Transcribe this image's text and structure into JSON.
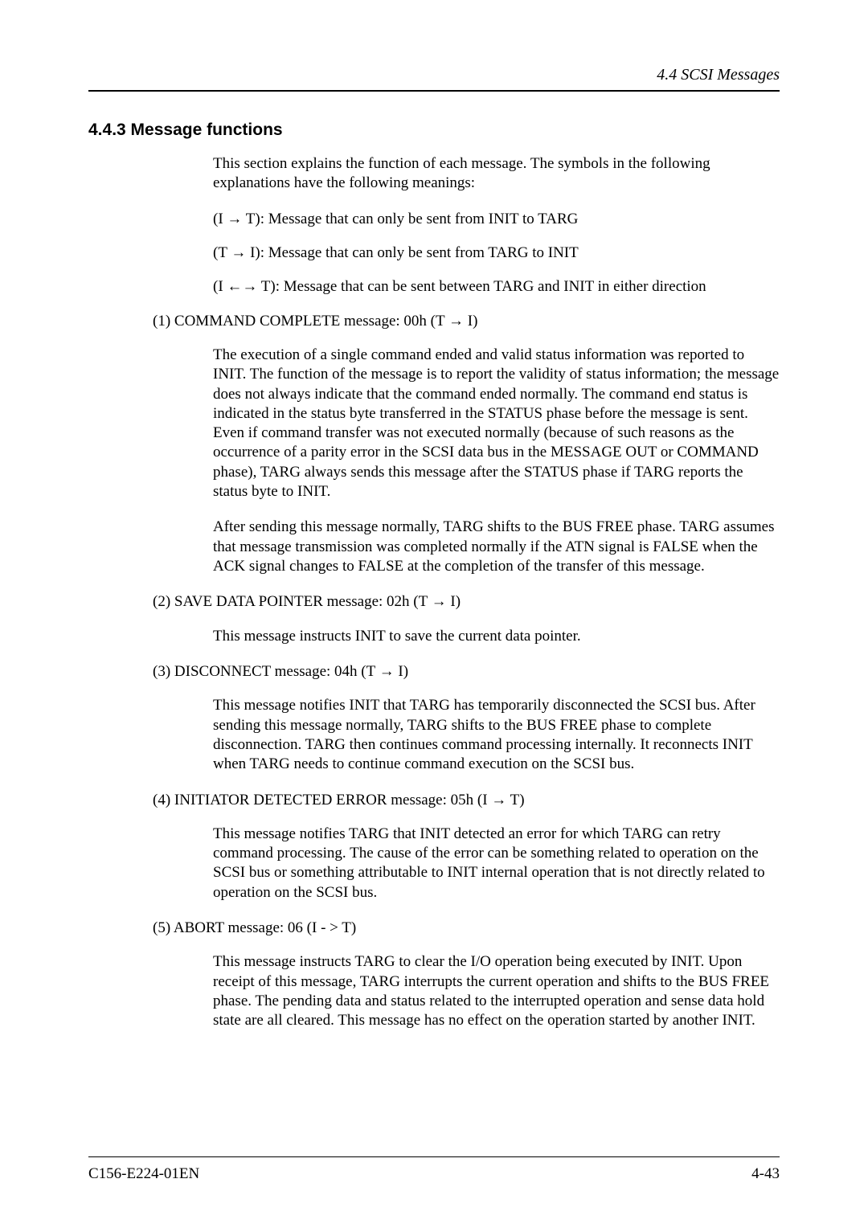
{
  "header": {
    "section_ref": "4.4  SCSI Messages"
  },
  "section": {
    "heading": "4.4.3  Message functions",
    "intro": "This section explains the function of each message.  The symbols in the following explanations have the following meanings:",
    "symbols": {
      "s1": "(I → T):  Message that can only be sent from INIT to TARG",
      "s2": "(T → I):  Message that can only be sent from TARG to INIT",
      "s3": "(I ←→ T):  Message that can be sent between TARG and INIT in either direction"
    },
    "items": {
      "n1": {
        "title": "(1)  COMMAND COMPLETE message:  00h (T → I)",
        "p1": "The execution of a single command ended and valid status information was reported to INIT.  The function of the message is to report the validity of status information; the message does not always indicate that the command ended normally.  The command end status is indicated in the status byte transferred in the STATUS phase before the message is sent.  Even if command transfer was not executed normally (because of such reasons as the occurrence of a parity error in the SCSI data bus in the MESSAGE OUT or COMMAND phase), TARG always sends this message after the STATUS phase if TARG reports the status byte to INIT.",
        "p2": "After sending this message normally, TARG shifts to the BUS FREE phase.  TARG assumes that message transmission was completed normally if the ATN signal is FALSE when the ACK signal changes to FALSE at the completion of the transfer of this message."
      },
      "n2": {
        "title": "(2)  SAVE DATA POINTER message:  02h (T → I)",
        "p1": "This message instructs INIT to save the current data pointer."
      },
      "n3": {
        "title": "(3)  DISCONNECT message:  04h (T → I)",
        "p1": "This message notifies INIT that TARG has temporarily disconnected the SCSI bus.  After sending this message normally, TARG shifts to the BUS FREE phase to complete disconnection.  TARG then continues command processing internally.  It reconnects INIT when TARG needs to continue command execution on the SCSI bus."
      },
      "n4": {
        "title": "(4)  INITIATOR DETECTED ERROR message:  05h (I → T)",
        "p1": "This message notifies TARG that INIT detected an error for which TARG can retry command processing.  The cause of the error can be something related to operation on the SCSI bus or something attributable to INIT internal operation that is not directly related to operation on the SCSI bus."
      },
      "n5": {
        "title": "(5)  ABORT message:  06 (I - > T)",
        "p1": "This message instructs TARG to clear the I/O operation being executed by INIT.  Upon receipt of this message, TARG interrupts the current operation and shifts to the BUS FREE phase.  The pending data and status related to the interrupted operation and sense data hold state are all cleared.  This message has no effect on the operation started by another INIT."
      }
    }
  },
  "footer": {
    "doc_id": "C156-E224-01EN",
    "page": "4-43"
  }
}
